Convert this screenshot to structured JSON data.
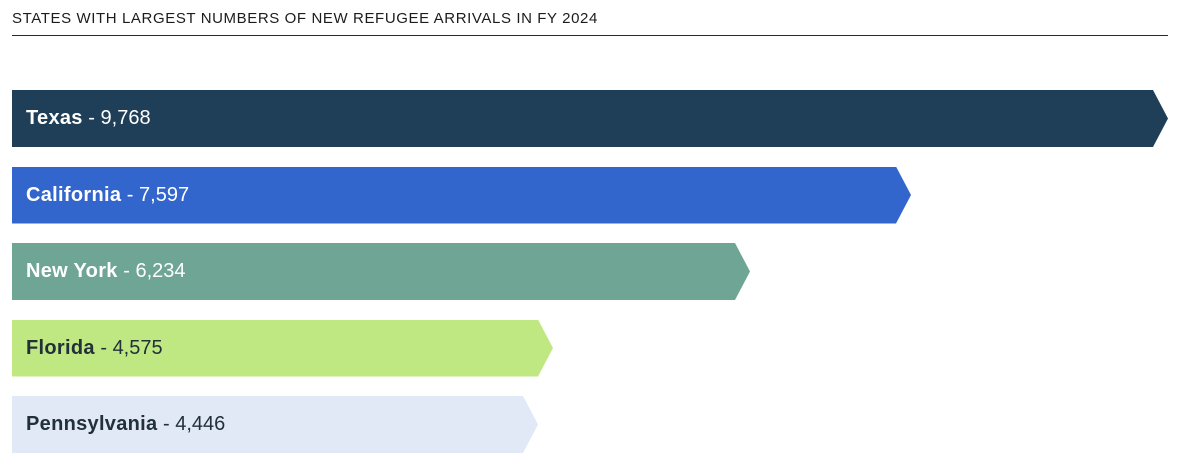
{
  "chart_data": {
    "type": "bar",
    "orientation": "horizontal",
    "title": "STATES WITH LARGEST NUMBERS OF NEW REFUGEE ARRIVALS IN FY 2024",
    "separator": "-",
    "categories": [
      "Texas",
      "California",
      "New York",
      "Florida",
      "Pennsylvania"
    ],
    "values": [
      9768,
      7597,
      6234,
      4575,
      4446
    ],
    "value_labels": [
      "9,768",
      "7,597",
      "6,234",
      "4,575",
      "4,446"
    ],
    "colors": [
      "#1f3f58",
      "#3366cc",
      "#6fa594",
      "#c0e882",
      "#e1e8f6"
    ],
    "text_colors": [
      "#ffffff",
      "#ffffff",
      "#ffffff",
      "#22303a",
      "#22303a"
    ],
    "xlim": [
      0,
      9768
    ],
    "grid": false,
    "legend": "none"
  }
}
